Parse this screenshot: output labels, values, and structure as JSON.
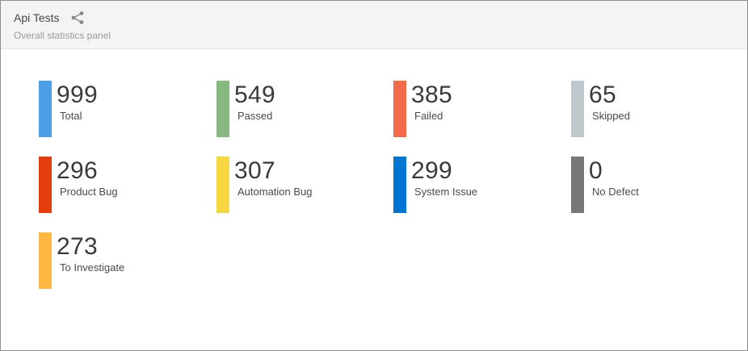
{
  "header": {
    "title": "Api Tests",
    "subtitle": "Overall statistics panel",
    "share_icon": "share-icon"
  },
  "stats": [
    {
      "value": "999",
      "label": "Total",
      "color": "#4a9fe6"
    },
    {
      "value": "549",
      "label": "Passed",
      "color": "#87b87f"
    },
    {
      "value": "385",
      "label": "Failed",
      "color": "#f36c4a"
    },
    {
      "value": "65",
      "label": "Skipped",
      "color": "#bdc7cc"
    },
    {
      "value": "296",
      "label": "Product Bug",
      "color": "#e53e0d"
    },
    {
      "value": "307",
      "label": "Automation Bug",
      "color": "#f8d642"
    },
    {
      "value": "299",
      "label": "System Issue",
      "color": "#0274d1"
    },
    {
      "value": "0",
      "label": "No Defect",
      "color": "#777777"
    },
    {
      "value": "273",
      "label": "To Investigate",
      "color": "#ffb743"
    }
  ]
}
